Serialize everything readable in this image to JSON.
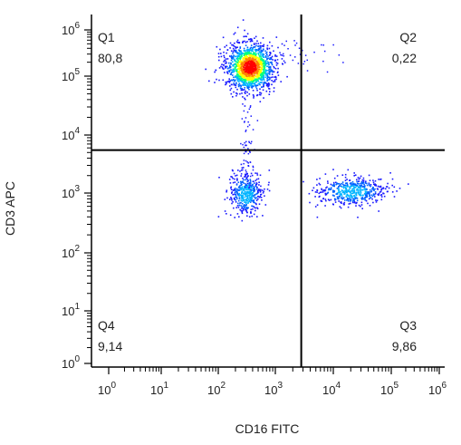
{
  "chart_data": {
    "type": "scatter",
    "xlabel": "CD16 FITC",
    "ylabel": "CD3 APC",
    "x_scale": "log",
    "y_scale": "log",
    "xlim": [
      0.5,
      1500000
    ],
    "ylim": [
      0.6,
      1500000
    ],
    "x_tick_labels": [
      "10^0",
      "10^1",
      "10^2",
      "10^3",
      "10^4",
      "10^5",
      "10^6"
    ],
    "y_tick_labels": [
      "10^0",
      "10^1",
      "10^2",
      "10^3",
      "10^4",
      "10^5",
      "10^6"
    ],
    "x_gate": 2800,
    "y_gate": 5500,
    "quadrants": [
      {
        "name": "Q1",
        "value": "80,8"
      },
      {
        "name": "Q2",
        "value": "0,22"
      },
      {
        "name": "Q3",
        "value": "9,86"
      },
      {
        "name": "Q4",
        "value": "9,14"
      }
    ],
    "populations": [
      {
        "quadrant": "Q1",
        "center": [
          350,
          160000
        ],
        "color_scale": "density (blue-green-yellow-red)"
      },
      {
        "quadrant": "Q4",
        "center": [
          300,
          1000
        ],
        "color_scale": "density (blue-cyan)"
      },
      {
        "quadrant": "Q3",
        "center": [
          20000,
          1100
        ],
        "color_scale": "density (blue-cyan)"
      }
    ]
  },
  "colors": {
    "low": "#1a1aff",
    "mid_low": "#00b4ff",
    "mid": "#00ff80",
    "mid_high": "#ffff00",
    "high": "#ff0000",
    "axis": "#000000"
  }
}
